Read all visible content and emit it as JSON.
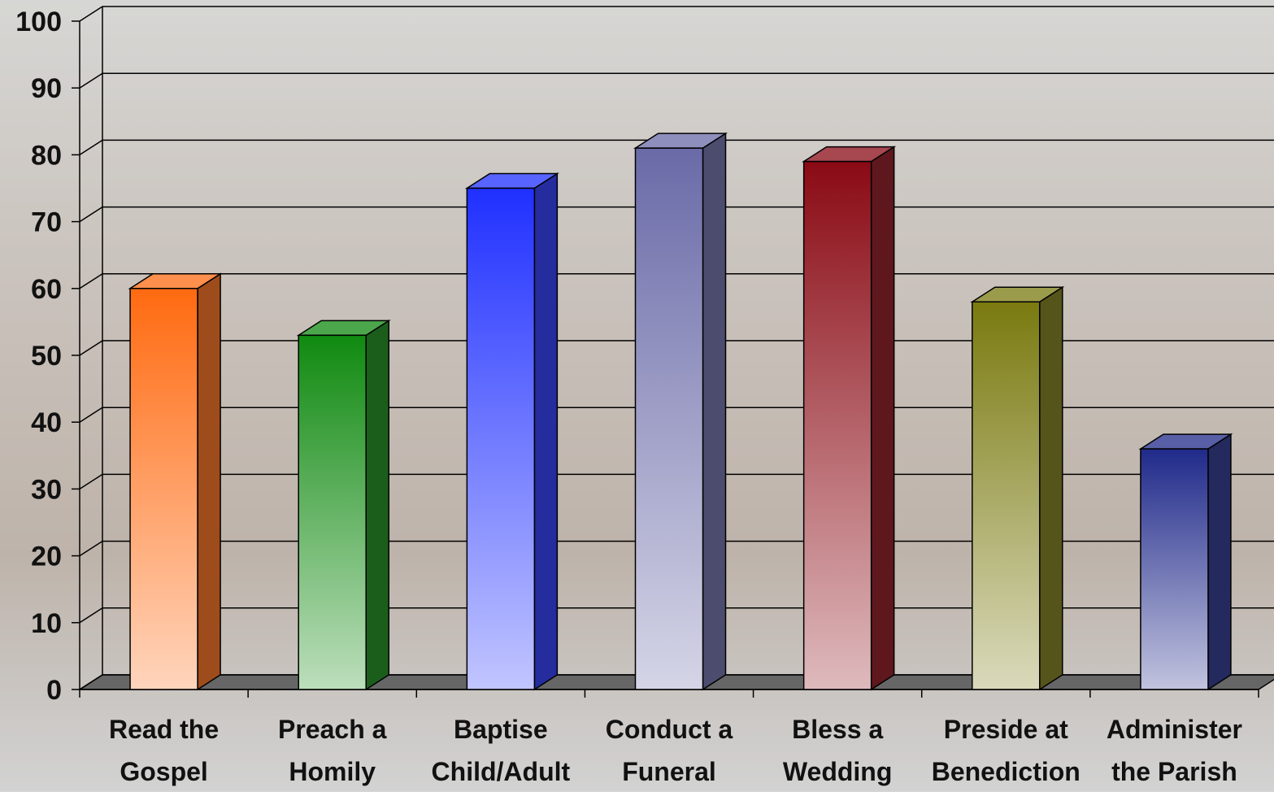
{
  "chart_data": {
    "type": "bar3d",
    "categories": [
      [
        "Read the",
        "Gospel"
      ],
      [
        "Preach a",
        "Homily"
      ],
      [
        "Baptise",
        "Child/Adult"
      ],
      [
        "Conduct a",
        "Funeral"
      ],
      [
        "Bless a",
        "Wedding"
      ],
      [
        "Preside at",
        "Benediction"
      ],
      [
        "Administer",
        "the Parish"
      ]
    ],
    "values": [
      60,
      53,
      75,
      81,
      79,
      58,
      36
    ],
    "colors": [
      "#ff6a10",
      "#108a10",
      "#2030ff",
      "#6a6aa8",
      "#8a0a14",
      "#7a7a10",
      "#202a8a"
    ],
    "ylim": [
      0,
      100
    ],
    "yticks": [
      0,
      10,
      20,
      30,
      40,
      50,
      60,
      70,
      80,
      90,
      100
    ],
    "grid": true
  }
}
